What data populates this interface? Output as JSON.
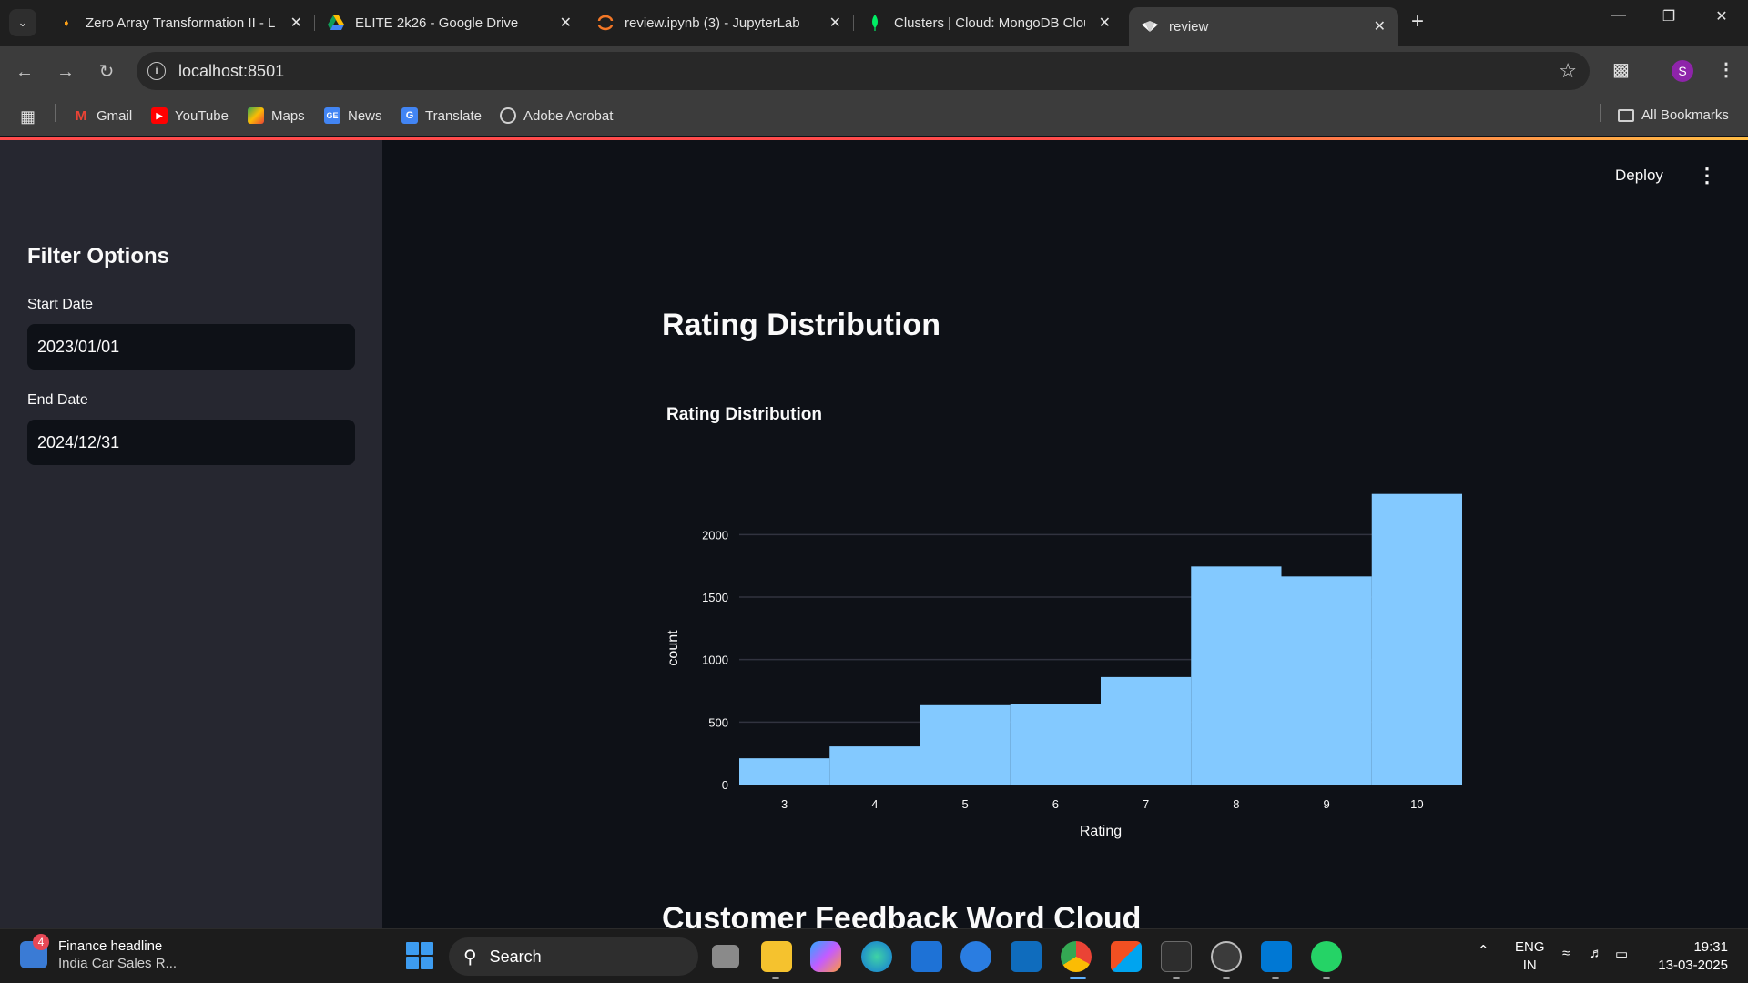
{
  "browser": {
    "tabs": [
      {
        "title": "Zero Array Transformation II - L",
        "icon": "leetcode-icon",
        "active": false
      },
      {
        "title": "ELITE 2k26 - Google Drive",
        "icon": "google-drive-icon",
        "active": false
      },
      {
        "title": "review.ipynb (3) - JupyterLab",
        "icon": "jupyter-icon",
        "active": false
      },
      {
        "title": "Clusters | Cloud: MongoDB Clou",
        "icon": "mongodb-icon",
        "active": false
      },
      {
        "title": "review",
        "icon": "streamlit-icon",
        "active": true
      }
    ],
    "url": "localhost:8501",
    "profile_initial": "S",
    "bookmarks": [
      {
        "label": "Gmail",
        "icon": "gmail-icon"
      },
      {
        "label": "YouTube",
        "icon": "youtube-icon"
      },
      {
        "label": "Maps",
        "icon": "maps-icon"
      },
      {
        "label": "News",
        "icon": "news-icon"
      },
      {
        "label": "Translate",
        "icon": "translate-icon"
      },
      {
        "label": "Adobe Acrobat",
        "icon": "acrobat-icon"
      }
    ],
    "all_bookmarks": "All Bookmarks"
  },
  "app": {
    "header": {
      "deploy": "Deploy"
    },
    "sidebar": {
      "title": "Filter Options",
      "start_label": "Start Date",
      "start_value": "2023/01/01",
      "end_label": "End Date",
      "end_value": "2024/12/31"
    },
    "main": {
      "section_title": "Rating Distribution",
      "next_section_title": "Customer Feedback Word Cloud"
    }
  },
  "chart_data": {
    "type": "bar",
    "title": "Rating Distribution",
    "xlabel": "Rating",
    "ylabel": "count",
    "categories": [
      "3",
      "4",
      "5",
      "6",
      "7",
      "8",
      "9",
      "10"
    ],
    "values": [
      210,
      305,
      635,
      645,
      860,
      1745,
      1665,
      2325
    ],
    "yticks": [
      0,
      500,
      1000,
      1500,
      2000
    ],
    "ylim": [
      0,
      2330
    ],
    "color": "#83c9ff",
    "grid": true
  },
  "taskbar": {
    "news_badge": "4",
    "news_title": "Finance headline",
    "news_sub": "India Car Sales R...",
    "search_label": "Search",
    "lang": "ENG",
    "region": "IN",
    "time": "19:31",
    "date": "13-03-2025"
  }
}
